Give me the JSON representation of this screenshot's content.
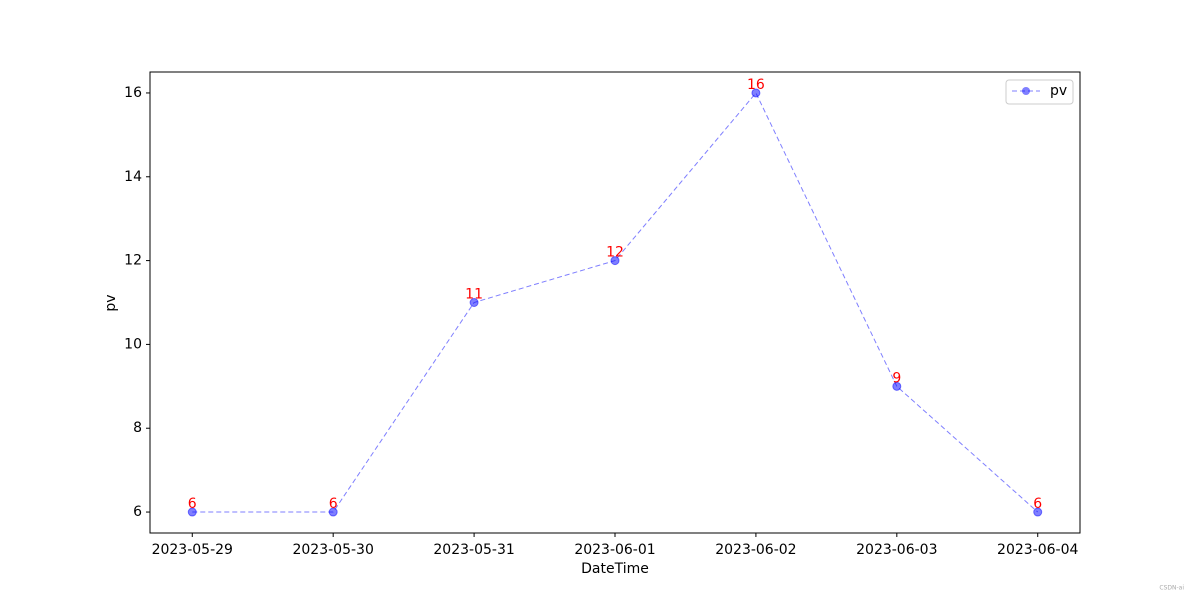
{
  "chart_data": {
    "type": "line",
    "x_label": "DateTime",
    "y_label": "pv",
    "categories": [
      "2023-05-29",
      "2023-05-30",
      "2023-05-31",
      "2023-06-01",
      "2023-06-02",
      "2023-06-03",
      "2023-06-04"
    ],
    "series": [
      {
        "name": "pv",
        "color": "#0000ff",
        "alpha": 0.5,
        "linestyle": "dashed",
        "marker": "circle",
        "values": [
          6,
          6,
          11,
          12,
          16,
          9,
          6
        ]
      }
    ],
    "value_label_color": "#ff0000",
    "ylim": [
      5.5,
      16.5
    ],
    "yticks": [
      6,
      8,
      10,
      12,
      14,
      16
    ],
    "legend": "upper right",
    "watermark": "CSDN-ai"
  }
}
